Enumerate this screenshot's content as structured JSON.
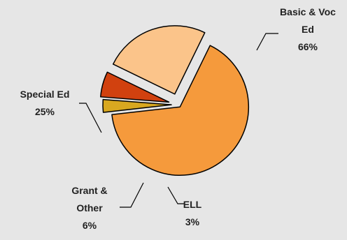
{
  "chart_data": {
    "type": "pie",
    "title": "",
    "slices": [
      {
        "label_lines": [
          "Basic & Voc",
          "Ed"
        ],
        "value": 66,
        "value_label": "66%",
        "color": "#f59a3c"
      },
      {
        "label_lines": [
          "ELL"
        ],
        "value": 3,
        "value_label": "3%",
        "color": "#d8a820"
      },
      {
        "label_lines": [
          "Grant &",
          "Other"
        ],
        "value": 6,
        "value_label": "6%",
        "color": "#d1410f"
      },
      {
        "label_lines": [
          "Special Ed"
        ],
        "value": 25,
        "value_label": "25%",
        "color": "#fbc48a"
      }
    ],
    "exploded": true,
    "legend": "none",
    "edge_color": "#000000"
  }
}
